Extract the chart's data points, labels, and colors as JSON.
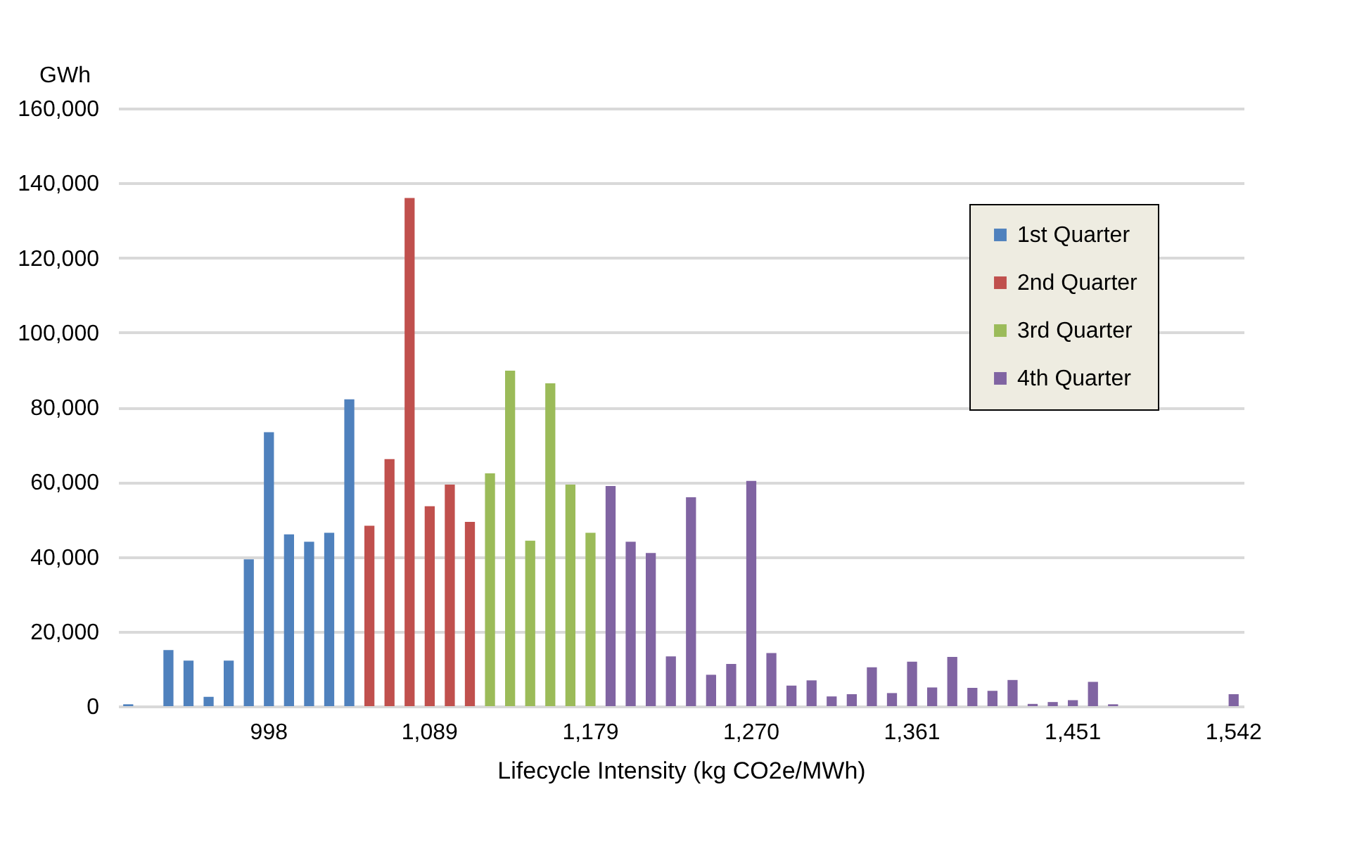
{
  "chart_data": {
    "type": "bar",
    "xlabel": "Lifecycle Intensity (kg CO2e/MWh)",
    "ylabel": "GWh",
    "categories": [
      null,
      null,
      null,
      null,
      null,
      null,
      null,
      "998",
      null,
      null,
      null,
      null,
      null,
      null,
      null,
      "1,089",
      null,
      null,
      null,
      null,
      null,
      null,
      null,
      "1,179",
      null,
      null,
      null,
      null,
      null,
      null,
      null,
      "1,270",
      null,
      null,
      null,
      null,
      null,
      null,
      null,
      "1,361",
      null,
      null,
      null,
      null,
      null,
      null,
      null,
      "1,451",
      null,
      null,
      null,
      null,
      null,
      null,
      null,
      "1,542"
    ],
    "series": [
      {
        "name": "1st Quarter",
        "color": "#4f81bd",
        "values": [
          500,
          0,
          15000,
          12200,
          2500,
          12200,
          39300,
          73300,
          46000,
          44000,
          46400,
          82100,
          null,
          null,
          null,
          null,
          null,
          null,
          null,
          null,
          null,
          null,
          null,
          null,
          null,
          null,
          null,
          null,
          null,
          null,
          null,
          null,
          null,
          null,
          null,
          null,
          null,
          null,
          null,
          null,
          null,
          null,
          null,
          null,
          null,
          null,
          null,
          null,
          null,
          null,
          null,
          null,
          null,
          null,
          null,
          null
        ]
      },
      {
        "name": "2nd Quarter",
        "color": "#c0504d",
        "values": [
          null,
          null,
          null,
          null,
          null,
          null,
          null,
          null,
          null,
          null,
          null,
          null,
          48300,
          66100,
          136000,
          53500,
          59300,
          49300,
          null,
          null,
          null,
          null,
          null,
          null,
          null,
          null,
          null,
          null,
          null,
          null,
          null,
          null,
          null,
          null,
          null,
          null,
          null,
          null,
          null,
          null,
          null,
          null,
          null,
          null,
          null,
          null,
          null,
          null,
          null,
          null,
          null,
          null,
          null,
          null,
          null,
          null
        ]
      },
      {
        "name": "3rd Quarter",
        "color": "#9bbb59",
        "values": [
          null,
          null,
          null,
          null,
          null,
          null,
          null,
          null,
          null,
          null,
          null,
          null,
          null,
          null,
          null,
          null,
          null,
          null,
          62300,
          89800,
          44300,
          86400,
          59300,
          46400,
          null,
          null,
          null,
          null,
          null,
          null,
          null,
          null,
          null,
          null,
          null,
          null,
          null,
          null,
          null,
          null,
          null,
          null,
          null,
          null,
          null,
          null,
          null,
          null,
          null,
          null,
          null,
          null,
          null,
          null,
          null,
          null
        ]
      },
      {
        "name": "4th Quarter",
        "color": "#8064a2",
        "values": [
          null,
          null,
          null,
          null,
          null,
          null,
          null,
          null,
          null,
          null,
          null,
          null,
          null,
          null,
          null,
          null,
          null,
          null,
          null,
          null,
          null,
          null,
          null,
          null,
          58900,
          44000,
          41000,
          13300,
          55900,
          8400,
          11300,
          60300,
          14200,
          5500,
          6900,
          2600,
          3200,
          10400,
          3500,
          11900,
          5000,
          13200,
          4900,
          4100,
          7000,
          600,
          1100,
          1600,
          6500,
          500,
          0,
          0,
          0,
          0,
          0,
          3200
        ]
      }
    ],
    "ylim": [
      0,
      160000
    ],
    "yticks": [
      0,
      {
        "value": 20000,
        "label": "20,000"
      },
      {
        "value": 40000,
        "label": "40,000"
      },
      {
        "value": 60000,
        "label": "60,000"
      },
      {
        "value": 80000,
        "label": "80,000"
      },
      {
        "value": 100000,
        "label": "100,000"
      },
      {
        "value": 120000,
        "label": "120,000"
      },
      {
        "value": 140000,
        "label": "140,000"
      },
      {
        "value": 160000,
        "label": "160,000"
      }
    ],
    "grid": "y",
    "legend": "top right"
  }
}
